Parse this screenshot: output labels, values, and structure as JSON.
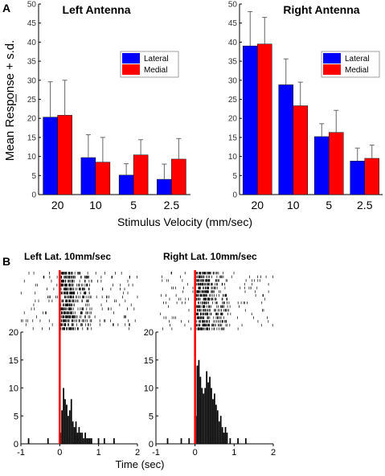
{
  "panel_a_label": "A",
  "panel_b_label": "B",
  "ylabel": "Mean Response + s.d.",
  "xlabel": "Stimulus Velocity (mm/sec)",
  "time_label": "Time (sec)",
  "colors": {
    "lateral": "#0000ff",
    "medial": "#ff0000",
    "stimulus_line": "#ff0000",
    "time_label": "#3a3a8c"
  },
  "chart_data": [
    {
      "type": "bar",
      "title": "Left Antenna",
      "categories": [
        "20",
        "10",
        "5",
        "2.5"
      ],
      "series": [
        {
          "name": "Lateral",
          "values": [
            20.3,
            9.7,
            5.1,
            4.0
          ],
          "sd": [
            9.3,
            6.0,
            3.0,
            4.0
          ]
        },
        {
          "name": "Medial",
          "values": [
            20.8,
            8.5,
            10.4,
            9.3
          ],
          "sd": [
            9.2,
            6.5,
            4.0,
            5.4
          ]
        }
      ],
      "ylim": [
        0,
        50
      ],
      "yticks": [
        "0",
        "5",
        "10",
        "15",
        "20",
        "25",
        "30",
        "35",
        "40",
        "45",
        "50"
      ],
      "legend": "right"
    },
    {
      "type": "bar",
      "title": "Right Antenna",
      "categories": [
        "20",
        "10",
        "5",
        "2.5"
      ],
      "series": [
        {
          "name": "Lateral",
          "values": [
            39.0,
            28.8,
            15.2,
            8.8
          ],
          "sd": [
            9.0,
            6.8,
            3.4,
            3.4
          ]
        },
        {
          "name": "Medial",
          "values": [
            39.5,
            23.3,
            16.3,
            9.5
          ],
          "sd": [
            7.0,
            6.2,
            5.8,
            3.5
          ]
        }
      ],
      "ylim": [
        0,
        50
      ],
      "yticks": [
        "0",
        "5",
        "10",
        "15",
        "20",
        "25",
        "30",
        "35",
        "40",
        "45",
        "50"
      ],
      "legend": "right"
    },
    {
      "type": "bar",
      "title": "Left Lat. 10mm/sec",
      "stimulus_onset": 0,
      "raster_trials": 15,
      "xlim": [
        -1,
        2
      ],
      "xticks": [
        "-1",
        "0",
        "1",
        "2"
      ],
      "ylim": [
        0,
        20
      ],
      "yticks": [
        "0",
        "5",
        "10",
        "15",
        "20"
      ],
      "x": [
        -0.8,
        -0.3,
        0.02,
        0.06,
        0.1,
        0.14,
        0.18,
        0.22,
        0.26,
        0.3,
        0.34,
        0.38,
        0.42,
        0.46,
        0.5,
        0.54,
        0.58,
        0.62,
        0.66,
        0.7,
        0.74,
        0.78,
        0.82,
        1.0,
        1.15,
        1.4
      ],
      "values": [
        1,
        1,
        2,
        6,
        10,
        8,
        7,
        5,
        6,
        8,
        4,
        3,
        4,
        2,
        3,
        2,
        2,
        1,
        2,
        1,
        1,
        1,
        1,
        1,
        1,
        1
      ]
    },
    {
      "type": "bar",
      "title": "Right Lat. 10mm/sec",
      "stimulus_onset": 0,
      "raster_trials": 16,
      "xlim": [
        -1,
        2
      ],
      "xticks": [
        "-1",
        "0",
        "1",
        "2"
      ],
      "ylim": [
        0,
        20
      ],
      "yticks": [
        "0",
        "5",
        "10",
        "15",
        "20"
      ],
      "x": [
        -0.7,
        -0.35,
        -0.15,
        0.02,
        0.06,
        0.1,
        0.14,
        0.18,
        0.22,
        0.26,
        0.3,
        0.34,
        0.38,
        0.42,
        0.46,
        0.5,
        0.54,
        0.58,
        0.62,
        0.66,
        0.7,
        0.74,
        0.78,
        0.82,
        0.9,
        1.1,
        1.3
      ],
      "values": [
        1,
        1,
        1,
        5,
        14,
        15,
        12,
        10,
        9,
        10,
        13,
        11,
        12,
        10,
        8,
        9,
        7,
        6,
        4,
        5,
        3,
        2,
        3,
        2,
        1,
        1,
        1
      ]
    }
  ]
}
